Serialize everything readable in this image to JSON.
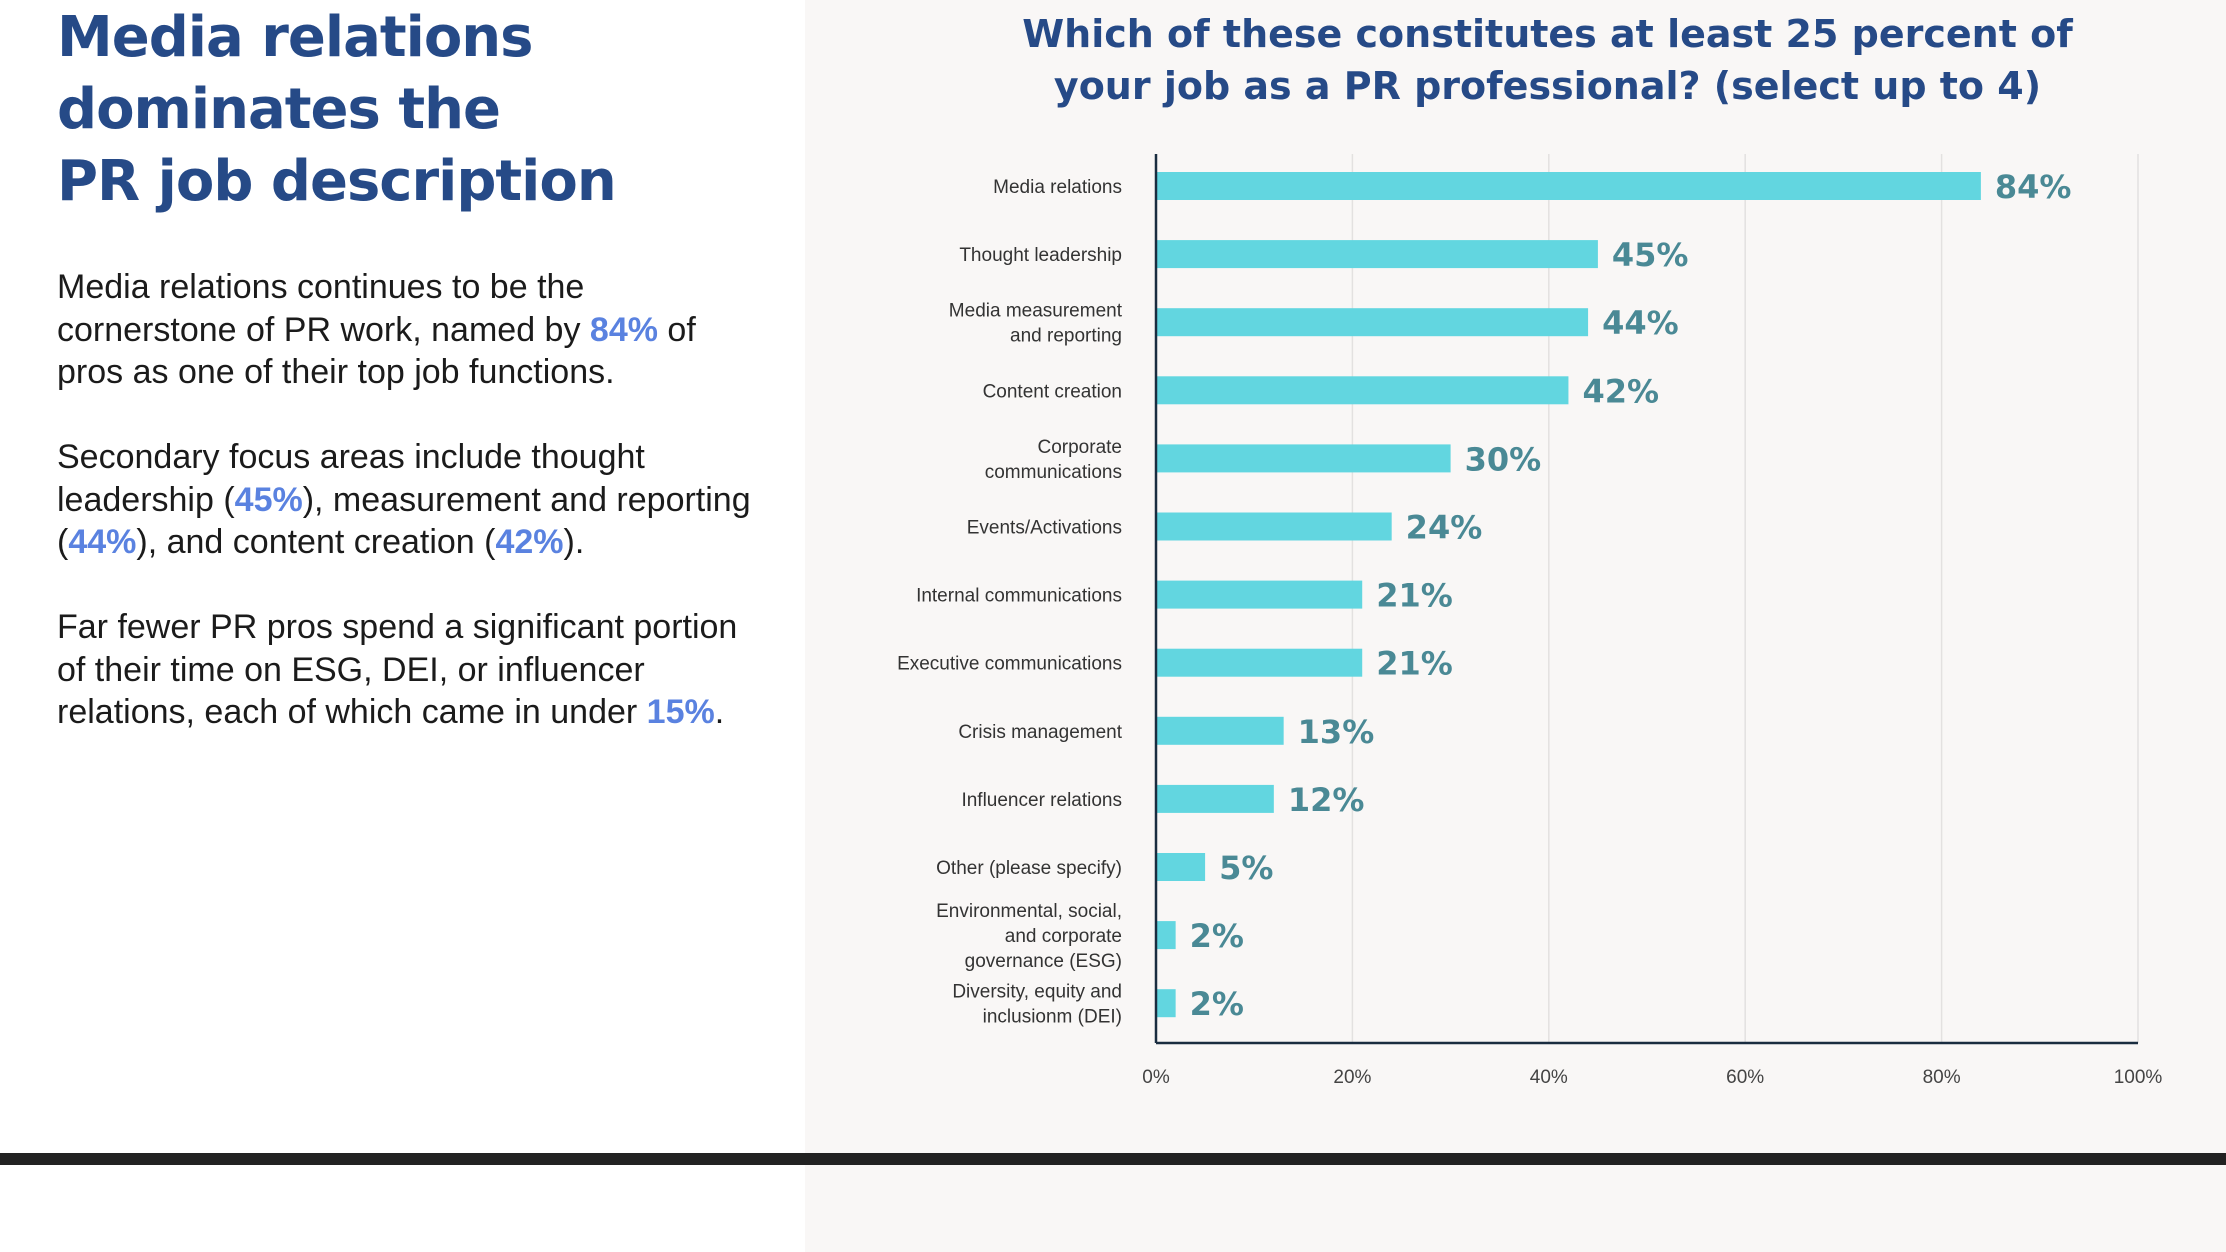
{
  "left": {
    "headline_lines": [
      "Media relations",
      "dominates the",
      "PR job description"
    ],
    "para1": {
      "before": "Media relations continues to be the cornerstone of PR work, named by ",
      "highlight": "84%",
      "after": " of pros as one of their top job functions."
    },
    "para2": {
      "t1": "Secondary focus areas include thought leadership (",
      "h1": "45%",
      "t2": "), measurement and reporting (",
      "h2": "44%",
      "t3": "), and content creation (",
      "h3": "42%",
      "t4": ")."
    },
    "para3": {
      "before": "Far fewer PR pros spend a significant portion of their time on ESG, DEI, or influencer relations, each of which came in under ",
      "highlight": "15%",
      "after": "."
    }
  },
  "colors": {
    "bar": "#62d6e0",
    "value_label": "#4a8995",
    "title": "#264a87",
    "highlight": "#5a82e0"
  },
  "chart_data": {
    "type": "bar",
    "orientation": "horizontal",
    "title": "Which of these constitutes at least 25 percent of your job as a PR professional? (select up to 4)",
    "title_lines": [
      "Which of these constitutes at least 25 percent of",
      "your job as a PR professional? (select up to 4)"
    ],
    "categories": [
      [
        "Media relations"
      ],
      [
        "Thought leadership"
      ],
      [
        "Media measurement",
        "and reporting"
      ],
      [
        "Content creation"
      ],
      [
        "Corporate",
        "communications"
      ],
      [
        "Events/Activations"
      ],
      [
        "Internal communications"
      ],
      [
        "Executive communications"
      ],
      [
        "Crisis management"
      ],
      [
        "Influencer relations"
      ],
      [
        "Other (please specify)"
      ],
      [
        "Environmental, social,",
        "and corporate",
        "governance (ESG)"
      ],
      [
        "Diversity, equity and",
        "inclusionm (DEI)"
      ]
    ],
    "values": [
      84,
      45,
      44,
      42,
      30,
      24,
      21,
      21,
      13,
      12,
      5,
      2,
      2
    ],
    "value_labels": [
      "84%",
      "45%",
      "44%",
      "42%",
      "30%",
      "24%",
      "21%",
      "21%",
      "13%",
      "12%",
      "5%",
      "2%",
      "2%"
    ],
    "xlim": [
      0,
      100
    ],
    "xticks": [
      0,
      20,
      40,
      60,
      80,
      100
    ],
    "xtick_labels": [
      "0%",
      "20%",
      "40%",
      "60%",
      "80%",
      "100%"
    ],
    "grid": true,
    "xlabel": "",
    "ylabel": ""
  }
}
